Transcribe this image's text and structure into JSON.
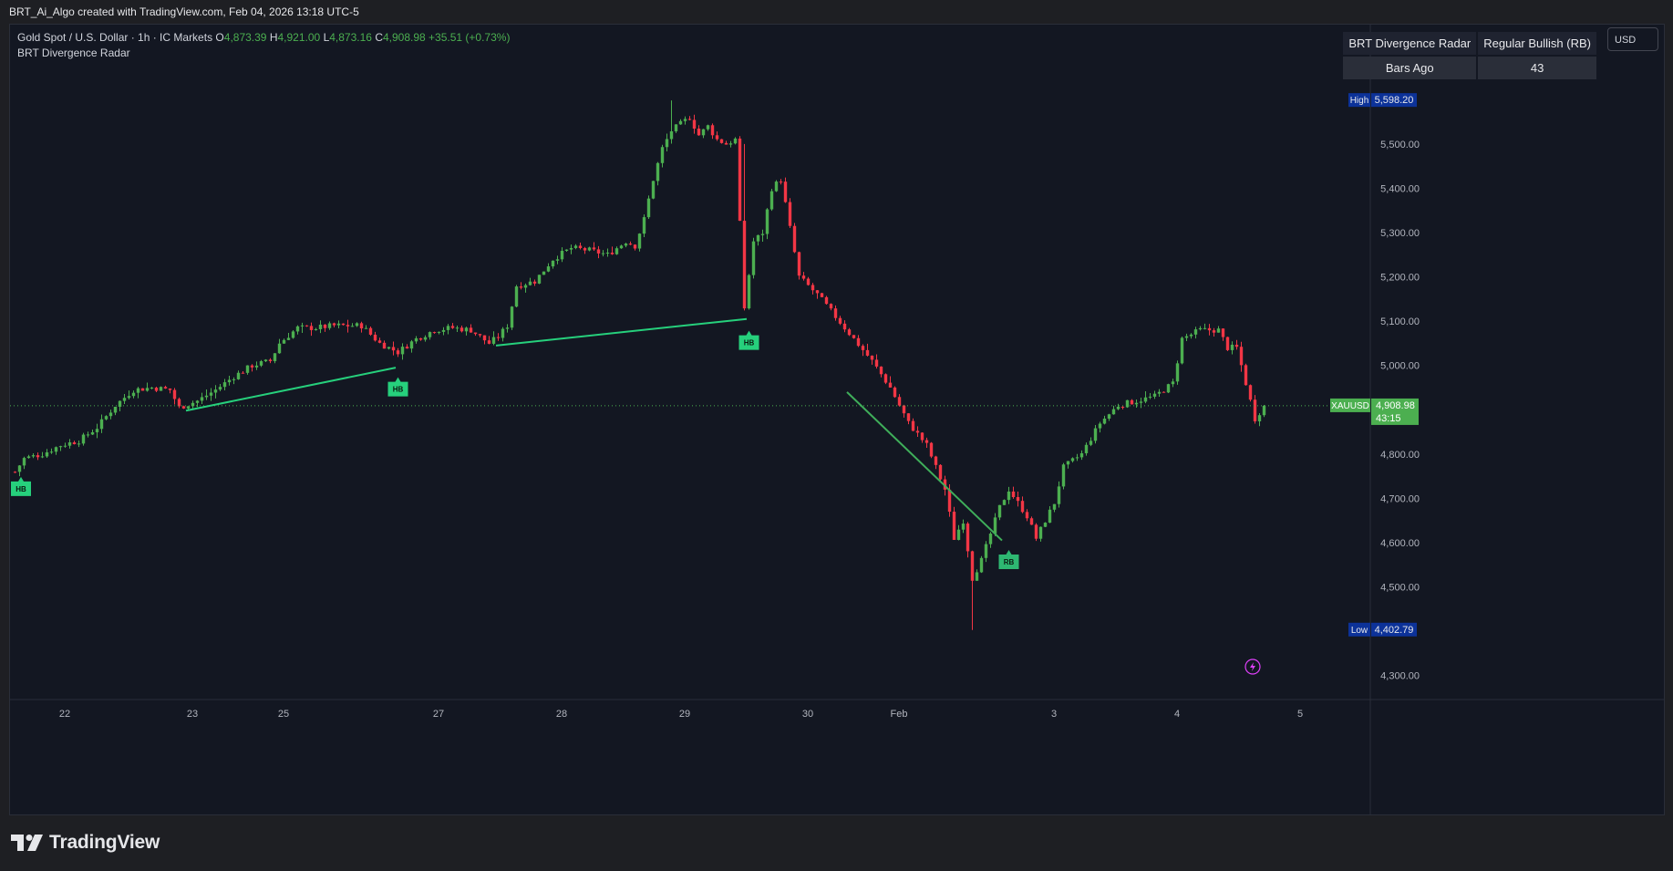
{
  "header": {
    "attribution": "BRT_Ai_Algo created with TradingView.com, Feb 04, 2026 13:18 UTC-5"
  },
  "legend": {
    "symbol_line": "Gold Spot / U.S. Dollar · 1h · IC Markets",
    "o_label": "O",
    "o_value": "4,873.39",
    "h_label": "H",
    "h_value": "4,921.00",
    "l_label": "L",
    "l_value": "4,873.16",
    "c_label": "C",
    "c_value": "4,908.98",
    "change": "+35.51 (+0.73%)",
    "indicator_name": "BRT Divergence Radar"
  },
  "info_table": {
    "title": "BRT Divergence Radar",
    "signal": "Regular Bullish (RB)",
    "bars_ago_label": "Bars Ago",
    "bars_ago_value": "43"
  },
  "currency_button": "USD",
  "footer": {
    "brand": "TradingView"
  },
  "colors": {
    "background": "#131722",
    "bull": "#4caf50",
    "bear": "#f23645",
    "divergence_line": "#26d07c",
    "label_green": "#26d07c",
    "high_low_badge": "#0c3299",
    "price_badge": "#4caf50"
  },
  "chart_data": {
    "type": "candlestick",
    "symbol": "XAUUSD",
    "timeframe": "1h",
    "y_range": [
      4250,
      5650
    ],
    "y_ticks": [
      4300,
      4500,
      4600,
      4700,
      4800,
      5000,
      5100,
      5200,
      5300,
      5400,
      5500
    ],
    "y_tick_labels": [
      "4,300.00",
      "4,500.00",
      "4,600.00",
      "4,700.00",
      "4,800.00",
      "5,000.00",
      "5,100.00",
      "5,200.00",
      "5,300.00",
      "5,400.00",
      "5,500.00"
    ],
    "x_labels": [
      "22",
      "23",
      "25",
      "27",
      "28",
      "29",
      "30",
      "Feb",
      "3",
      "4",
      "5"
    ],
    "high": {
      "label": "High",
      "value": "5,598.20",
      "price": 5598.2
    },
    "low": {
      "label": "Low",
      "value": "4,402.79",
      "price": 4402.79
    },
    "last_price": {
      "symbol": "XAUUSD",
      "value": "4,908.98",
      "countdown": "43:15",
      "price": 4908.98
    },
    "close_path": [
      [
        0,
        4760
      ],
      [
        2,
        4790
      ],
      [
        6,
        4800
      ],
      [
        10,
        4820
      ],
      [
        14,
        4830
      ],
      [
        18,
        4860
      ],
      [
        22,
        4910
      ],
      [
        26,
        4945
      ],
      [
        30,
        4950
      ],
      [
        34,
        4945
      ],
      [
        36,
        4905
      ],
      [
        40,
        4920
      ],
      [
        44,
        4945
      ],
      [
        48,
        4975
      ],
      [
        52,
        5000
      ],
      [
        56,
        5010
      ],
      [
        58,
        5050
      ],
      [
        62,
        5085
      ],
      [
        66,
        5085
      ],
      [
        70,
        5090
      ],
      [
        76,
        5090
      ],
      [
        80,
        5050
      ],
      [
        84,
        5030
      ],
      [
        88,
        5060
      ],
      [
        92,
        5080
      ],
      [
        96,
        5085
      ],
      [
        100,
        5080
      ],
      [
        104,
        5050
      ],
      [
        106,
        5065
      ],
      [
        108,
        5090
      ],
      [
        110,
        5180
      ],
      [
        114,
        5190
      ],
      [
        118,
        5240
      ],
      [
        122,
        5265
      ],
      [
        126,
        5260
      ],
      [
        130,
        5250
      ],
      [
        134,
        5280
      ],
      [
        136,
        5270
      ],
      [
        138,
        5330
      ],
      [
        140,
        5420
      ],
      [
        142,
        5490
      ],
      [
        144,
        5530
      ],
      [
        148,
        5560
      ],
      [
        150,
        5520
      ],
      [
        152,
        5540
      ],
      [
        154,
        5510
      ],
      [
        156,
        5500
      ],
      [
        158,
        5510
      ],
      [
        160,
        5130
      ],
      [
        162,
        5280
      ],
      [
        164,
        5300
      ],
      [
        166,
        5400
      ],
      [
        168,
        5420
      ],
      [
        170,
        5310
      ],
      [
        172,
        5200
      ],
      [
        176,
        5160
      ],
      [
        180,
        5110
      ],
      [
        184,
        5060
      ],
      [
        188,
        5010
      ],
      [
        192,
        4950
      ],
      [
        196,
        4870
      ],
      [
        200,
        4820
      ],
      [
        204,
        4720
      ],
      [
        206,
        4610
      ],
      [
        208,
        4650
      ],
      [
        210,
        4520
      ],
      [
        212,
        4560
      ],
      [
        214,
        4620
      ],
      [
        216,
        4680
      ],
      [
        218,
        4720
      ],
      [
        222,
        4660
      ],
      [
        224,
        4610
      ],
      [
        226,
        4650
      ],
      [
        228,
        4690
      ],
      [
        230,
        4770
      ],
      [
        234,
        4800
      ],
      [
        238,
        4870
      ],
      [
        242,
        4910
      ],
      [
        246,
        4920
      ],
      [
        250,
        4930
      ],
      [
        254,
        4960
      ],
      [
        256,
        5060
      ],
      [
        260,
        5080
      ],
      [
        264,
        5080
      ],
      [
        266,
        5040
      ],
      [
        268,
        5040
      ],
      [
        270,
        4960
      ],
      [
        272,
        4880
      ],
      [
        274,
        4909
      ]
    ],
    "divergence_lines": [
      {
        "type": "HB",
        "from": [
          38,
          4898
        ],
        "to": [
          84,
          4995
        ]
      },
      {
        "type": "HB",
        "from": [
          106,
          5045
        ],
        "to": [
          161,
          5105
        ]
      },
      {
        "type": "RB",
        "from": [
          183,
          4940
        ],
        "to": [
          217,
          4605
        ]
      }
    ],
    "signal_labels": [
      {
        "text": "HB",
        "bar": 0,
        "price": 4730
      },
      {
        "text": "HB",
        "bar": 84,
        "price": 4955
      },
      {
        "text": "HB",
        "bar": 161,
        "price": 5060
      },
      {
        "text": "RB",
        "bar": 218,
        "price": 4565
      }
    ]
  }
}
